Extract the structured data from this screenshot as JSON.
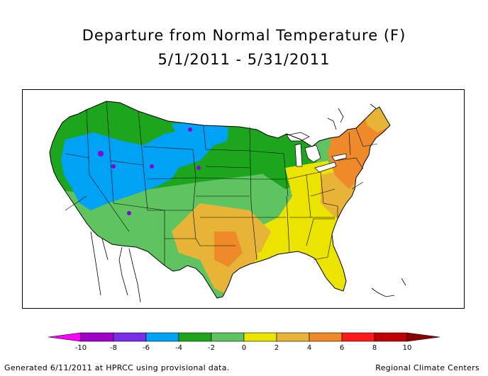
{
  "title": {
    "line1": "Departure from Normal Temperature (F)",
    "line2": "5/1/2011 - 5/31/2011"
  },
  "map": {
    "region": "Contiguous United States",
    "colors": {
      "purple": "#8b00d8",
      "blue": "#00a2f5",
      "dark_green": "#1ea51e",
      "light_green": "#5fc35f",
      "yellow": "#ebe300",
      "light_orange": "#e8b437",
      "orange": "#ef8a2a",
      "water": "#ffffff",
      "border": "#000000"
    }
  },
  "legend": {
    "ticks": [
      "-10",
      "-8",
      "-6",
      "-4",
      "-2",
      "0",
      "2",
      "4",
      "6",
      "8",
      "10"
    ],
    "colors": [
      "#ff00ff",
      "#a000c8",
      "#7b2ce8",
      "#00a2f5",
      "#1ea51e",
      "#5fc35f",
      "#ebe300",
      "#e8b437",
      "#ef8a2a",
      "#ff1a1a",
      "#c00000",
      "#8b0000"
    ]
  },
  "footer": {
    "left": "Generated 6/11/2011 at HPRCC using provisional data.",
    "right": "Regional Climate Centers"
  }
}
